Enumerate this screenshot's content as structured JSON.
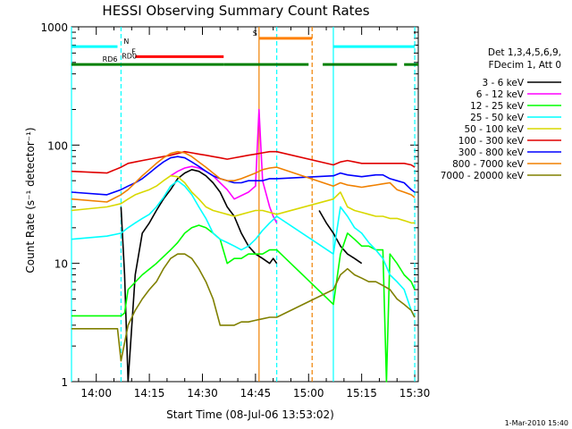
{
  "chart_data": {
    "type": "line",
    "title": "HESSI Observing Summary Count Rates",
    "xlabel": "Start Time (08-Jul-06 13:53:02)",
    "ylabel": "Count Rate (s⁻¹ detector⁻¹)",
    "x_ticks": [
      "14:00",
      "14:15",
      "14:30",
      "14:45",
      "15:00",
      "15:15",
      "15:30"
    ],
    "x_tick_minutes": [
      7,
      22,
      37,
      52,
      67,
      82,
      97
    ],
    "xlim_minutes": [
      0,
      98
    ],
    "y_scale": "log",
    "ylim": [
      1,
      1000
    ],
    "y_ticks": [
      "1",
      "10",
      "100",
      "1000"
    ],
    "y_tick_values": [
      1,
      10,
      100,
      1000
    ],
    "grid": false,
    "legend_position": "right",
    "legend_header": [
      "Det 1,3,4,5,6,9,",
      "FDecim 1, Att 0"
    ],
    "footer": "1-Mar-2010 15:40",
    "series": [
      {
        "name": "3 - 6 keV",
        "color": "#000000",
        "x": [
          14,
          15,
          16,
          18,
          20,
          22,
          24,
          26,
          28,
          30,
          32,
          34,
          36,
          38,
          40,
          42,
          44,
          46,
          48,
          50,
          52,
          54,
          56,
          57,
          58,
          66,
          68,
          70,
          72,
          74,
          76,
          78,
          80,
          82
        ],
        "y": [
          30,
          8,
          1,
          8,
          18,
          22,
          28,
          35,
          42,
          52,
          58,
          62,
          60,
          55,
          48,
          40,
          30,
          25,
          18,
          14,
          12,
          11,
          10,
          11,
          10,
          null,
          null,
          28,
          22,
          18,
          14,
          12,
          11,
          10
        ]
      },
      {
        "name": "6 - 12 keV",
        "color": "#ff00ff",
        "x": [
          28,
          30,
          32,
          34,
          36,
          38,
          40,
          42,
          44,
          46,
          50,
          52,
          53,
          54,
          56,
          57,
          58
        ],
        "y": [
          55,
          60,
          64,
          66,
          64,
          60,
          55,
          48,
          42,
          35,
          40,
          45,
          200,
          50,
          30,
          25,
          22
        ]
      },
      {
        "name": "12 - 25 keV",
        "color": "#00ff00",
        "x": [
          0,
          14,
          15,
          16,
          20,
          24,
          28,
          30,
          32,
          34,
          36,
          38,
          40,
          42,
          44,
          46,
          48,
          50,
          52,
          54,
          56,
          58,
          74,
          76,
          78,
          80,
          82,
          84,
          86,
          88,
          89,
          90,
          92,
          94,
          96,
          97
        ],
        "y": [
          3.6,
          3.6,
          3.8,
          6,
          8,
          10,
          13,
          15,
          18,
          20,
          21,
          20,
          18,
          16,
          10,
          11,
          11,
          12,
          12,
          12,
          13,
          13,
          4.5,
          12,
          18,
          16,
          14,
          14,
          13,
          13,
          1,
          12,
          10,
          8,
          7,
          6
        ]
      },
      {
        "name": "25 - 50 keV",
        "color": "#00ffff",
        "x": [
          0,
          10,
          14,
          16,
          18,
          20,
          22,
          24,
          26,
          28,
          30,
          32,
          34,
          36,
          38,
          40,
          42,
          44,
          46,
          48,
          50,
          52,
          54,
          56,
          58,
          74,
          76,
          78,
          80,
          82,
          84,
          86,
          88,
          90,
          92,
          94,
          96,
          97
        ],
        "y": [
          16,
          17,
          18,
          20,
          22,
          24,
          26,
          30,
          36,
          45,
          50,
          45,
          38,
          30,
          24,
          18,
          16,
          15,
          14,
          13,
          14,
          16,
          19,
          22,
          25,
          12,
          30,
          25,
          20,
          18,
          15,
          13,
          11,
          8,
          7,
          6,
          4,
          3.5
        ]
      },
      {
        "name": "50 - 100 keV",
        "color": "#d8d800",
        "x": [
          0,
          10,
          14,
          16,
          18,
          20,
          22,
          24,
          26,
          28,
          30,
          32,
          34,
          36,
          38,
          40,
          42,
          44,
          46,
          48,
          50,
          52,
          54,
          56,
          58,
          74,
          76,
          78,
          80,
          82,
          84,
          86,
          88,
          90,
          92,
          94,
          96,
          97
        ],
        "y": [
          28,
          30,
          32,
          35,
          38,
          40,
          42,
          45,
          50,
          55,
          54,
          48,
          40,
          35,
          30,
          28,
          27,
          26,
          25,
          26,
          27,
          28,
          28,
          27,
          26,
          35,
          40,
          30,
          28,
          27,
          26,
          25,
          25,
          24,
          24,
          23,
          22,
          22
        ]
      },
      {
        "name": "100 - 300 keV",
        "color": "#e00000",
        "x": [
          0,
          10,
          14,
          16,
          18,
          20,
          22,
          24,
          26,
          28,
          30,
          32,
          34,
          36,
          38,
          40,
          42,
          44,
          46,
          48,
          50,
          52,
          54,
          56,
          58,
          74,
          76,
          78,
          80,
          82,
          84,
          86,
          88,
          90,
          92,
          94,
          96,
          97
        ],
        "y": [
          60,
          58,
          65,
          70,
          72,
          74,
          76,
          78,
          80,
          82,
          85,
          88,
          86,
          84,
          82,
          80,
          78,
          76,
          78,
          80,
          82,
          84,
          86,
          88,
          88,
          68,
          72,
          74,
          72,
          70,
          70,
          70,
          70,
          70,
          70,
          70,
          68,
          65
        ]
      },
      {
        "name": "300 - 800 keV",
        "color": "#0000ff",
        "x": [
          0,
          10,
          14,
          16,
          18,
          20,
          22,
          24,
          26,
          28,
          30,
          32,
          34,
          36,
          38,
          40,
          42,
          44,
          46,
          48,
          50,
          52,
          54,
          56,
          58,
          74,
          76,
          78,
          80,
          82,
          84,
          86,
          88,
          90,
          92,
          94,
          96,
          97
        ],
        "y": [
          40,
          38,
          42,
          45,
          48,
          52,
          58,
          65,
          72,
          78,
          80,
          78,
          72,
          66,
          60,
          55,
          52,
          50,
          48,
          48,
          50,
          50,
          50,
          52,
          52,
          55,
          58,
          56,
          55,
          54,
          55,
          56,
          56,
          52,
          50,
          48,
          42,
          40
        ]
      },
      {
        "name": "800 - 7000 keV",
        "color": "#f08000",
        "x": [
          0,
          10,
          14,
          16,
          18,
          20,
          22,
          24,
          26,
          28,
          30,
          32,
          34,
          36,
          38,
          40,
          42,
          44,
          46,
          48,
          50,
          52,
          54,
          56,
          58,
          74,
          76,
          78,
          80,
          82,
          84,
          86,
          88,
          90,
          92,
          94,
          96,
          97
        ],
        "y": [
          35,
          33,
          38,
          42,
          48,
          55,
          62,
          70,
          78,
          85,
          88,
          86,
          80,
          72,
          65,
          58,
          52,
          50,
          50,
          52,
          55,
          58,
          62,
          64,
          65,
          45,
          48,
          46,
          45,
          44,
          45,
          46,
          47,
          48,
          42,
          40,
          38,
          36
        ]
      },
      {
        "name": "7000 - 20000 keV",
        "color": "#808000",
        "x": [
          0,
          13,
          14,
          16,
          18,
          20,
          22,
          24,
          26,
          28,
          30,
          32,
          34,
          36,
          38,
          40,
          42,
          44,
          46,
          48,
          50,
          52,
          54,
          56,
          58,
          74,
          76,
          78,
          80,
          82,
          84,
          86,
          88,
          90,
          92,
          94,
          96,
          97
        ],
        "y": [
          2.8,
          2.8,
          1.5,
          3,
          4,
          5,
          6,
          7,
          9,
          11,
          12,
          12,
          11,
          9,
          7,
          5,
          3,
          3,
          3,
          3.2,
          3.2,
          3.3,
          3.4,
          3.5,
          3.5,
          6,
          8,
          9,
          8,
          7.5,
          7,
          7,
          6.5,
          6,
          5,
          4.5,
          4,
          3.5
        ]
      }
    ],
    "state_bars": [
      {
        "label": "N",
        "color": "#00ffff",
        "y": 680,
        "segments": [
          [
            0,
            13
          ],
          [
            74,
            97
          ]
        ]
      },
      {
        "label": "F",
        "color": "#ff0000",
        "y": 560,
        "segments": [
          [
            18,
            43
          ]
        ]
      },
      {
        "label": "RD0",
        "color": "#ff0000",
        "y": 510,
        "segments": []
      },
      {
        "label": "RD6",
        "color": "#008000",
        "y": 480,
        "segments": [
          [
            0,
            14
          ],
          [
            14,
            43
          ],
          [
            43,
            67
          ],
          [
            71,
            92
          ],
          [
            94,
            98
          ]
        ]
      },
      {
        "label": "S",
        "color": "#ff8000",
        "y": 800,
        "segments": [
          [
            53,
            68
          ]
        ]
      }
    ],
    "vertical_markers": [
      {
        "color": "#00ffff",
        "style": "solid",
        "x": 0
      },
      {
        "color": "#00ffff",
        "style": "dashed",
        "x": 14
      },
      {
        "color": "#00ffff",
        "style": "dashed",
        "x": 58
      },
      {
        "color": "#f08000",
        "style": "solid",
        "x": 53
      },
      {
        "color": "#f08000",
        "style": "dashed",
        "x": 68
      },
      {
        "color": "#00ffff",
        "style": "solid",
        "x": 74
      },
      {
        "color": "#00ffff",
        "style": "dashed",
        "x": 97
      }
    ]
  }
}
